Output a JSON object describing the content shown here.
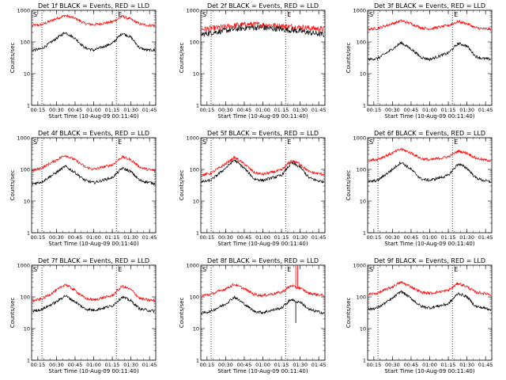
{
  "figure": {
    "ylabel": "Counts/sec",
    "xlabel": "Start Time (10-Aug-09 00:11:40)",
    "x_ticks": [
      "00:15",
      "00:30",
      "00:45",
      "01:00",
      "01:15",
      "01:30",
      "01:45"
    ],
    "y_ticks": [
      "1",
      "10",
      "100",
      "1000"
    ],
    "marker_S": "S",
    "marker_E": "E",
    "colors": {
      "events": "#000000",
      "lld": "#ff0000"
    }
  },
  "chart_data": [
    {
      "type": "line",
      "title": "Det 1f BLACK = Events, RED = LLD",
      "xlim_min": [
        10,
        110
      ],
      "ylim": [
        1,
        1000
      ],
      "yscale": "log",
      "grid": false,
      "vlines_min": [
        18.3,
        78.3
      ],
      "x_ticks_min": [
        15,
        30,
        45,
        60,
        75,
        90,
        105
      ],
      "series": [
        {
          "name": "Events",
          "color": "#000000",
          "x_min": [
            10,
            18,
            30,
            37,
            45,
            53,
            60,
            75,
            83,
            90,
            97,
            103,
            110
          ],
          "y": [
            55,
            60,
            130,
            200,
            130,
            65,
            55,
            90,
            190,
            140,
            65,
            55,
            55
          ]
        },
        {
          "name": "LLD",
          "color": "#ff0000",
          "x_min": [
            10,
            18,
            30,
            37,
            45,
            53,
            60,
            75,
            83,
            90,
            97,
            103,
            110
          ],
          "y": [
            330,
            350,
            550,
            680,
            560,
            380,
            350,
            430,
            640,
            520,
            370,
            340,
            330
          ]
        }
      ]
    },
    {
      "type": "line",
      "title": "Det 2f BLACK = Events, RED = LLD",
      "xlim_min": [
        10,
        110
      ],
      "ylim": [
        1,
        1000
      ],
      "yscale": "log",
      "grid": false,
      "vlines_min": [
        18.3,
        78.3
      ],
      "x_ticks_min": [
        15,
        30,
        45,
        60,
        75,
        90,
        105
      ],
      "series": [
        {
          "name": "Events",
          "color": "#000000",
          "x_min": [
            10,
            20,
            30,
            40,
            50,
            60,
            70,
            80,
            90,
            100,
            110
          ],
          "y": [
            170,
            200,
            230,
            260,
            290,
            280,
            260,
            240,
            220,
            190,
            170
          ]
        },
        {
          "name": "LLD",
          "color": "#ff0000",
          "x_min": [
            10,
            20,
            30,
            40,
            50,
            60,
            70,
            80,
            90,
            100,
            110
          ],
          "y": [
            250,
            270,
            300,
            340,
            360,
            350,
            330,
            310,
            290,
            270,
            250
          ]
        }
      ]
    },
    {
      "type": "line",
      "title": "Det 3f BLACK = Events, RED = LLD",
      "xlim_min": [
        10,
        110
      ],
      "ylim": [
        1,
        1000
      ],
      "yscale": "log",
      "grid": false,
      "vlines_min": [
        18.3,
        78.3
      ],
      "x_ticks_min": [
        15,
        30,
        45,
        60,
        75,
        90,
        105
      ],
      "series": [
        {
          "name": "Events",
          "color": "#000000",
          "x_min": [
            10,
            18,
            30,
            37,
            45,
            53,
            60,
            75,
            83,
            90,
            97,
            103,
            110
          ],
          "y": [
            28,
            30,
            60,
            95,
            60,
            33,
            28,
            45,
            90,
            75,
            35,
            30,
            28
          ]
        },
        {
          "name": "LLD",
          "color": "#ff0000",
          "x_min": [
            10,
            18,
            30,
            37,
            45,
            53,
            60,
            75,
            83,
            90,
            97,
            103,
            110
          ],
          "y": [
            250,
            270,
            380,
            470,
            380,
            280,
            260,
            330,
            440,
            380,
            280,
            260,
            250
          ]
        }
      ]
    },
    {
      "type": "line",
      "title": "Det 4f BLACK = Events, RED = LLD",
      "xlim_min": [
        10,
        110
      ],
      "ylim": [
        1,
        1000
      ],
      "yscale": "log",
      "grid": false,
      "vlines_min": [
        18.3,
        78.3
      ],
      "x_ticks_min": [
        15,
        30,
        45,
        60,
        75,
        90,
        105
      ],
      "series": [
        {
          "name": "Events",
          "color": "#000000",
          "x_min": [
            10,
            18,
            30,
            37,
            45,
            53,
            60,
            75,
            83,
            90,
            97,
            103,
            110
          ],
          "y": [
            35,
            40,
            80,
            125,
            80,
            45,
            38,
            55,
            110,
            85,
            45,
            40,
            35
          ]
        },
        {
          "name": "LLD",
          "color": "#ff0000",
          "x_min": [
            10,
            18,
            30,
            37,
            45,
            53,
            60,
            75,
            83,
            90,
            97,
            103,
            110
          ],
          "y": [
            90,
            110,
            200,
            280,
            200,
            120,
            100,
            140,
            250,
            200,
            120,
            100,
            90
          ]
        }
      ]
    },
    {
      "type": "line",
      "title": "Det 5f BLACK = Events, RED = LLD",
      "xlim_min": [
        10,
        110
      ],
      "ylim": [
        1,
        1000
      ],
      "yscale": "log",
      "grid": false,
      "vlines_min": [
        18.3,
        78.3
      ],
      "x_ticks_min": [
        15,
        30,
        45,
        60,
        75,
        90,
        105
      ],
      "series": [
        {
          "name": "Events",
          "color": "#000000",
          "x_min": [
            10,
            18,
            30,
            37,
            45,
            53,
            60,
            75,
            83,
            90,
            97,
            103,
            110
          ],
          "y": [
            40,
            45,
            110,
            200,
            110,
            50,
            45,
            65,
            160,
            120,
            55,
            45,
            40
          ]
        },
        {
          "name": "LLD",
          "color": "#ff0000",
          "x_min": [
            10,
            18,
            30,
            37,
            45,
            53,
            60,
            75,
            83,
            90,
            97,
            103,
            110
          ],
          "y": [
            65,
            75,
            150,
            240,
            150,
            80,
            70,
            95,
            190,
            150,
            85,
            75,
            70
          ]
        }
      ]
    },
    {
      "type": "line",
      "title": "Det 6f BLACK = Events, RED = LLD",
      "xlim_min": [
        10,
        110
      ],
      "ylim": [
        1,
        1000
      ],
      "yscale": "log",
      "grid": false,
      "vlines_min": [
        18.3,
        78.3
      ],
      "x_ticks_min": [
        15,
        30,
        45,
        60,
        75,
        90,
        105
      ],
      "series": [
        {
          "name": "Events",
          "color": "#000000",
          "x_min": [
            10,
            18,
            30,
            37,
            45,
            53,
            60,
            75,
            83,
            90,
            97,
            103,
            110
          ],
          "y": [
            40,
            45,
            100,
            170,
            100,
            50,
            45,
            65,
            150,
            110,
            55,
            45,
            40
          ]
        },
        {
          "name": "LLD",
          "color": "#ff0000",
          "x_min": [
            10,
            18,
            30,
            37,
            45,
            53,
            60,
            75,
            83,
            90,
            97,
            103,
            110
          ],
          "y": [
            190,
            210,
            330,
            440,
            330,
            220,
            200,
            250,
            380,
            330,
            230,
            200,
            190
          ]
        }
      ]
    },
    {
      "type": "line",
      "title": "Det 7f BLACK = Events, RED = LLD",
      "xlim_min": [
        10,
        110
      ],
      "ylim": [
        1,
        1000
      ],
      "yscale": "log",
      "grid": false,
      "vlines_min": [
        18.3,
        78.3
      ],
      "x_ticks_min": [
        15,
        30,
        45,
        60,
        75,
        90,
        105
      ],
      "series": [
        {
          "name": "Events",
          "color": "#000000",
          "x_min": [
            10,
            18,
            30,
            37,
            45,
            53,
            60,
            75,
            83,
            90,
            97,
            103,
            110
          ],
          "y": [
            35,
            40,
            70,
            110,
            70,
            42,
            38,
            52,
            100,
            75,
            42,
            38,
            35
          ]
        },
        {
          "name": "LLD",
          "color": "#ff0000",
          "x_min": [
            10,
            18,
            30,
            37,
            45,
            53,
            60,
            75,
            83,
            90,
            97,
            103,
            110
          ],
          "y": [
            75,
            85,
            160,
            250,
            160,
            90,
            80,
            110,
            220,
            170,
            90,
            80,
            75
          ]
        }
      ]
    },
    {
      "type": "line",
      "title": "Det 8f BLACK = Events, RED = LLD",
      "xlim_min": [
        10,
        110
      ],
      "ylim": [
        1,
        1000
      ],
      "yscale": "log",
      "grid": false,
      "vlines_min": [
        18.3,
        78.3
      ],
      "x_ticks_min": [
        15,
        30,
        45,
        60,
        75,
        90,
        105
      ],
      "spikes_min": [
        {
          "x": 86.5,
          "series": "LLD"
        },
        {
          "x": 88,
          "series": "LLD"
        },
        {
          "x": 86.5,
          "series": "Events",
          "y_low": 15
        }
      ],
      "series": [
        {
          "name": "Events",
          "color": "#000000",
          "x_min": [
            10,
            18,
            30,
            37,
            45,
            53,
            60,
            75,
            83,
            86,
            90,
            97,
            103,
            110
          ],
          "y": [
            30,
            35,
            60,
            100,
            60,
            35,
            32,
            45,
            85,
            70,
            70,
            40,
            35,
            30
          ]
        },
        {
          "name": "LLD",
          "color": "#ff0000",
          "x_min": [
            10,
            18,
            30,
            37,
            45,
            53,
            60,
            75,
            83,
            86,
            90,
            97,
            103,
            110
          ],
          "y": [
            110,
            120,
            180,
            250,
            180,
            120,
            110,
            140,
            230,
            200,
            190,
            130,
            120,
            110
          ]
        }
      ]
    },
    {
      "type": "line",
      "title": "Det 9f BLACK = Events, RED = LLD",
      "xlim_min": [
        10,
        110
      ],
      "ylim": [
        1,
        1000
      ],
      "yscale": "log",
      "grid": false,
      "vlines_min": [
        18.3,
        78.3
      ],
      "x_ticks_min": [
        15,
        30,
        45,
        60,
        75,
        90,
        105
      ],
      "series": [
        {
          "name": "Events",
          "color": "#000000",
          "x_min": [
            10,
            18,
            30,
            37,
            45,
            53,
            60,
            75,
            83,
            90,
            97,
            103,
            110
          ],
          "y": [
            40,
            45,
            90,
            150,
            90,
            50,
            45,
            60,
            130,
            100,
            50,
            45,
            40
          ]
        },
        {
          "name": "LLD",
          "color": "#ff0000",
          "x_min": [
            10,
            18,
            30,
            37,
            45,
            53,
            60,
            75,
            83,
            90,
            97,
            103,
            110
          ],
          "y": [
            120,
            130,
            210,
            290,
            210,
            140,
            130,
            160,
            270,
            210,
            140,
            130,
            120
          ]
        }
      ]
    }
  ]
}
